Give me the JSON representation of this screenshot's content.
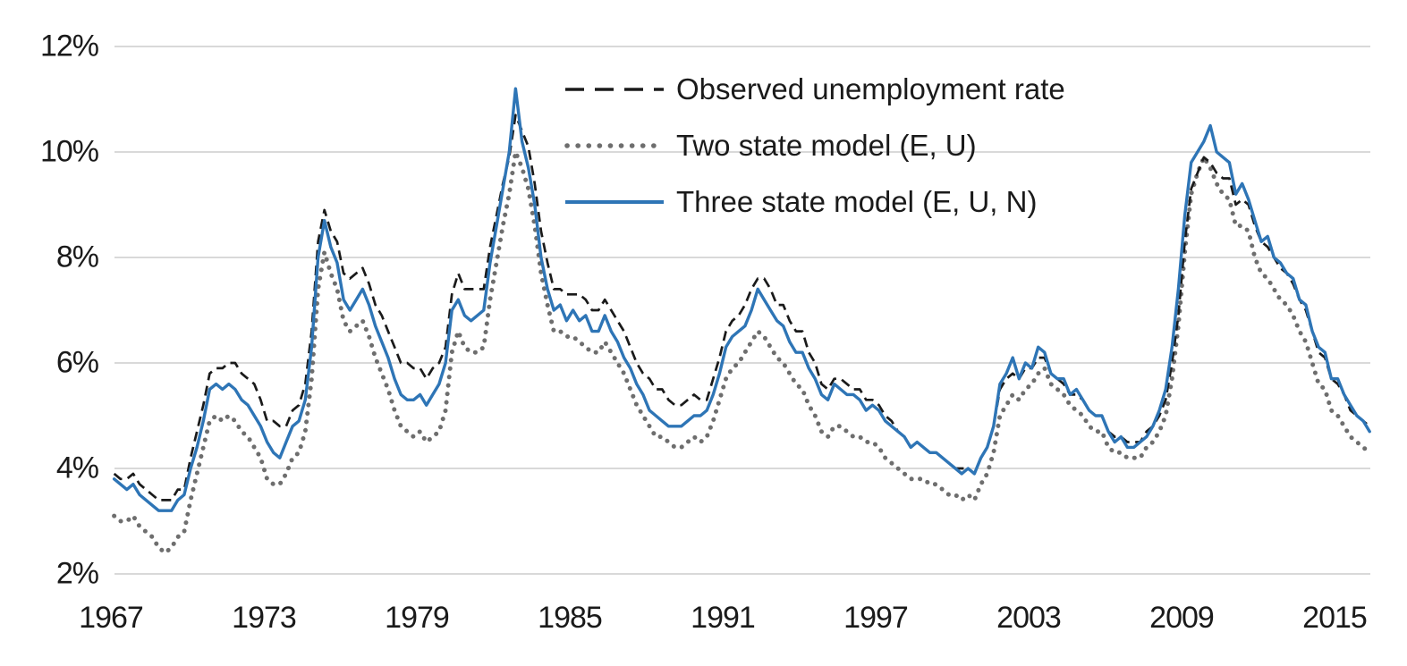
{
  "chart_data": {
    "type": "line",
    "title": "",
    "xlabel": "",
    "ylabel": "",
    "grid": true,
    "legend_position": "top-center-inside",
    "gridline_color": "#d9d9d9",
    "text_color": "#1a1a1a",
    "y_axis": {
      "unit": "%",
      "min": 2,
      "max": 12,
      "tick_step": 2,
      "tick_values": [
        2,
        4,
        6,
        8,
        10,
        12
      ],
      "tick_labels": [
        "2%",
        "4%",
        "6%",
        "8%",
        "10%",
        "12%"
      ]
    },
    "x_axis": {
      "start_year": 1967,
      "end_year": 2016.5,
      "period": "quarterly",
      "tick_values": [
        1967,
        1973,
        1979,
        1985,
        1991,
        1997,
        2003,
        2009,
        2015
      ],
      "tick_labels": [
        "1967",
        "1973",
        "1979",
        "1985",
        "1991",
        "1997",
        "2003",
        "2009",
        "2015"
      ]
    },
    "series": [
      {
        "name": "Observed unemployment rate",
        "style": "dashed",
        "color": "#1a1a1a",
        "values": [
          3.9,
          3.8,
          3.8,
          3.9,
          3.7,
          3.6,
          3.5,
          3.4,
          3.4,
          3.4,
          3.6,
          3.6,
          4.2,
          4.7,
          5.2,
          5.8,
          5.9,
          5.9,
          6.0,
          6.0,
          5.8,
          5.7,
          5.6,
          5.3,
          4.9,
          4.9,
          4.8,
          4.8,
          5.1,
          5.2,
          5.6,
          6.6,
          8.3,
          8.9,
          8.5,
          8.3,
          7.7,
          7.6,
          7.7,
          7.8,
          7.5,
          7.1,
          6.9,
          6.6,
          6.3,
          6.0,
          6.0,
          5.9,
          5.9,
          5.7,
          5.9,
          6.0,
          6.3,
          7.3,
          7.7,
          7.4,
          7.4,
          7.4,
          7.4,
          8.2,
          8.8,
          9.4,
          9.9,
          10.7,
          10.4,
          10.1,
          9.4,
          8.5,
          7.9,
          7.4,
          7.4,
          7.3,
          7.3,
          7.3,
          7.2,
          7.0,
          7.0,
          7.2,
          7.0,
          6.8,
          6.6,
          6.3,
          6.0,
          5.8,
          5.7,
          5.5,
          5.5,
          5.3,
          5.2,
          5.2,
          5.3,
          5.4,
          5.3,
          5.3,
          5.7,
          6.1,
          6.6,
          6.8,
          6.9,
          7.1,
          7.4,
          7.6,
          7.6,
          7.4,
          7.1,
          7.1,
          6.8,
          6.6,
          6.6,
          6.2,
          6.0,
          5.6,
          5.5,
          5.7,
          5.7,
          5.6,
          5.5,
          5.5,
          5.3,
          5.3,
          5.2,
          5.0,
          4.9,
          4.7,
          4.6,
          4.4,
          4.5,
          4.4,
          4.3,
          4.3,
          4.2,
          4.1,
          4.0,
          4.0,
          4.0,
          3.9,
          4.2,
          4.4,
          4.8,
          5.5,
          5.7,
          5.8,
          5.7,
          5.9,
          5.9,
          6.1,
          6.1,
          5.8,
          5.7,
          5.6,
          5.4,
          5.4,
          5.3,
          5.1,
          5.0,
          5.0,
          4.7,
          4.6,
          4.6,
          4.5,
          4.5,
          4.5,
          4.7,
          4.8,
          5.0,
          5.3,
          6.0,
          6.9,
          8.3,
          9.3,
          9.6,
          9.9,
          9.8,
          9.6,
          9.5,
          9.5,
          9.0,
          9.1,
          9.0,
          8.6,
          8.3,
          8.2,
          8.0,
          7.8,
          7.7,
          7.5,
          7.2,
          7.0,
          6.6,
          6.2,
          6.1,
          5.7,
          5.6,
          5.4,
          5.1,
          5.0,
          4.9,
          4.8
        ]
      },
      {
        "name": "Two state model (E, U)",
        "style": "dotted",
        "color": "#6e6e6e",
        "values": [
          3.1,
          3.0,
          3.0,
          3.1,
          2.9,
          2.8,
          2.7,
          2.5,
          2.4,
          2.5,
          2.7,
          2.8,
          3.4,
          3.9,
          4.4,
          4.9,
          5.0,
          4.9,
          5.0,
          4.9,
          4.7,
          4.6,
          4.4,
          4.2,
          3.8,
          3.7,
          3.7,
          3.9,
          4.2,
          4.3,
          4.7,
          5.7,
          7.4,
          8.1,
          7.7,
          7.4,
          6.8,
          6.6,
          6.7,
          6.8,
          6.5,
          6.1,
          5.8,
          5.5,
          5.1,
          4.8,
          4.7,
          4.6,
          4.7,
          4.5,
          4.6,
          4.7,
          5.1,
          6.2,
          6.6,
          6.3,
          6.2,
          6.2,
          6.3,
          7.2,
          7.9,
          8.6,
          9.2,
          10.0,
          9.7,
          9.3,
          8.6,
          7.7,
          7.1,
          6.6,
          6.6,
          6.5,
          6.5,
          6.4,
          6.3,
          6.2,
          6.2,
          6.4,
          6.2,
          6.0,
          5.8,
          5.5,
          5.2,
          5.0,
          4.8,
          4.6,
          4.6,
          4.5,
          4.4,
          4.4,
          4.5,
          4.6,
          4.5,
          4.6,
          4.9,
          5.3,
          5.7,
          5.9,
          6.0,
          6.2,
          6.4,
          6.6,
          6.5,
          6.3,
          6.1,
          6.0,
          5.8,
          5.6,
          5.5,
          5.2,
          5.0,
          4.7,
          4.6,
          4.8,
          4.8,
          4.7,
          4.6,
          4.6,
          4.5,
          4.5,
          4.4,
          4.2,
          4.1,
          4.0,
          3.9,
          3.8,
          3.8,
          3.8,
          3.7,
          3.7,
          3.6,
          3.5,
          3.5,
          3.4,
          3.5,
          3.4,
          3.7,
          3.9,
          4.3,
          5.0,
          5.2,
          5.4,
          5.3,
          5.5,
          5.6,
          5.8,
          5.9,
          5.6,
          5.5,
          5.4,
          5.2,
          5.1,
          5.0,
          4.8,
          4.7,
          4.7,
          4.4,
          4.3,
          4.3,
          4.2,
          4.2,
          4.2,
          4.4,
          4.5,
          4.7,
          5.0,
          5.7,
          6.7,
          8.1,
          9.2,
          9.6,
          9.9,
          9.7,
          9.4,
          9.2,
          9.1,
          8.6,
          8.6,
          8.5,
          8.0,
          7.7,
          7.6,
          7.4,
          7.2,
          7.1,
          6.9,
          6.6,
          6.4,
          6.0,
          5.6,
          5.5,
          5.1,
          5.0,
          4.8,
          4.6,
          4.5,
          4.4,
          4.3
        ]
      },
      {
        "name": "Three state model (E, U, N)",
        "style": "solid",
        "color": "#2e75b6",
        "values": [
          3.8,
          3.7,
          3.6,
          3.7,
          3.5,
          3.4,
          3.3,
          3.2,
          3.2,
          3.2,
          3.4,
          3.5,
          4.0,
          4.4,
          4.9,
          5.5,
          5.6,
          5.5,
          5.6,
          5.5,
          5.3,
          5.2,
          5.0,
          4.8,
          4.5,
          4.3,
          4.2,
          4.5,
          4.8,
          4.9,
          5.3,
          6.3,
          8.0,
          8.7,
          8.2,
          7.9,
          7.2,
          7.0,
          7.2,
          7.4,
          7.1,
          6.7,
          6.4,
          6.1,
          5.7,
          5.4,
          5.3,
          5.3,
          5.4,
          5.2,
          5.4,
          5.6,
          6.0,
          7.0,
          7.2,
          6.9,
          6.8,
          6.9,
          7.0,
          7.9,
          8.6,
          9.3,
          10.0,
          11.2,
          10.2,
          9.7,
          9.0,
          8.0,
          7.4,
          7.0,
          7.1,
          6.8,
          7.0,
          6.8,
          6.9,
          6.6,
          6.6,
          6.9,
          6.6,
          6.4,
          6.1,
          5.9,
          5.6,
          5.4,
          5.1,
          5.0,
          4.9,
          4.8,
          4.8,
          4.8,
          4.9,
          5.0,
          5.0,
          5.1,
          5.4,
          5.8,
          6.3,
          6.5,
          6.6,
          6.7,
          7.0,
          7.4,
          7.2,
          7.0,
          6.8,
          6.7,
          6.4,
          6.2,
          6.2,
          5.9,
          5.7,
          5.4,
          5.3,
          5.6,
          5.5,
          5.4,
          5.4,
          5.3,
          5.1,
          5.2,
          5.1,
          4.9,
          4.8,
          4.7,
          4.6,
          4.4,
          4.5,
          4.4,
          4.3,
          4.3,
          4.2,
          4.1,
          4.0,
          3.9,
          4.0,
          3.9,
          4.2,
          4.4,
          4.8,
          5.6,
          5.8,
          6.1,
          5.7,
          6.0,
          5.9,
          6.3,
          6.2,
          5.8,
          5.7,
          5.7,
          5.4,
          5.5,
          5.3,
          5.1,
          5.0,
          5.0,
          4.7,
          4.5,
          4.6,
          4.4,
          4.4,
          4.5,
          4.6,
          4.8,
          5.1,
          5.5,
          6.3,
          7.4,
          8.8,
          9.8,
          10.0,
          10.2,
          10.5,
          10.0,
          9.9,
          9.8,
          9.2,
          9.4,
          9.1,
          8.7,
          8.3,
          8.4,
          8.0,
          7.9,
          7.7,
          7.6,
          7.2,
          7.1,
          6.6,
          6.3,
          6.2,
          5.7,
          5.7,
          5.4,
          5.2,
          5.0,
          4.9,
          4.7
        ]
      }
    ]
  }
}
